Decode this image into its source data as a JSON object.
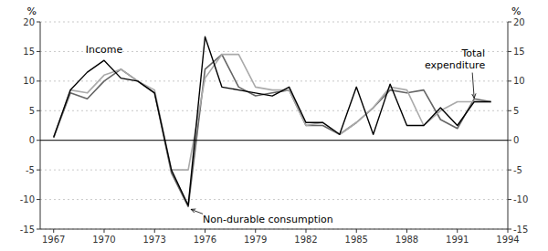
{
  "chart_data": {
    "type": "line",
    "x": [
      1967,
      1968,
      1969,
      1970,
      1971,
      1972,
      1973,
      1974,
      1975,
      1976,
      1977,
      1978,
      1979,
      1980,
      1981,
      1982,
      1983,
      1984,
      1985,
      1986,
      1987,
      1988,
      1989,
      1990,
      1991,
      1992,
      1993
    ],
    "series": [
      {
        "name": "Non-durable consumption",
        "color": "#666666",
        "values": [
          0.5,
          8.0,
          7.0,
          10.0,
          12.0,
          10.0,
          8.0,
          -5.5,
          -11.2,
          12.0,
          14.5,
          9.0,
          7.5,
          8.0,
          8.5,
          2.5,
          2.5,
          1.0,
          3.0,
          5.5,
          8.5,
          8.0,
          8.5,
          3.5,
          2.0,
          7.0,
          6.5
        ]
      },
      {
        "name": "Total\nexpenditure",
        "color": "#aaaaaa",
        "values": [
          0.5,
          8.5,
          8.0,
          11.0,
          12.0,
          10.0,
          8.5,
          -5.0,
          -5.0,
          10.5,
          14.5,
          14.5,
          9.0,
          8.5,
          8.5,
          2.5,
          3.0,
          1.0,
          3.0,
          5.5,
          9.0,
          8.5,
          2.5,
          5.0,
          6.5,
          6.5,
          6.5
        ]
      },
      {
        "name": "Income",
        "color": "#000000",
        "values": [
          0.5,
          8.5,
          11.5,
          13.5,
          10.5,
          10.0,
          8.0,
          -5.0,
          -11.0,
          17.5,
          9.0,
          8.5,
          8.0,
          7.5,
          9.0,
          3.0,
          3.0,
          1.0,
          9.0,
          1.0,
          9.5,
          2.5,
          2.5,
          5.5,
          2.5,
          6.5,
          6.5
        ]
      }
    ],
    "y_label": "%",
    "y2_label": "%",
    "xlim": [
      1966.2,
      1994.0
    ],
    "xticks": [
      1967,
      1970,
      1973,
      1976,
      1979,
      1982,
      1985,
      1988,
      1991,
      1994
    ],
    "ylim": [
      -15,
      20
    ],
    "yticks": [
      -15,
      -10,
      -5,
      0,
      5,
      10,
      15,
      20
    ],
    "y2lim": [
      -15,
      20
    ],
    "y2ticks": [
      -15,
      -10,
      -5,
      0,
      5,
      10,
      15,
      20
    ],
    "grid": true
  }
}
